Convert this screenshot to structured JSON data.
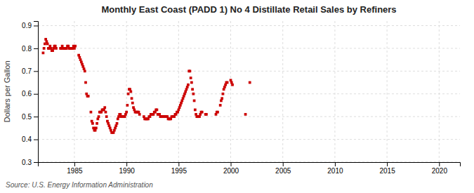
{
  "chart_data": {
    "type": "scatter",
    "title": "Monthly East Coast (PADD 1) No 4 Distillate Retail Sales by Refiners",
    "ylabel": "Dollars per Gallon",
    "annotations": [
      "Source: U.S. Energy Information Administration"
    ],
    "color": "#CC0000",
    "marker": "square",
    "grid": true,
    "xlim": [
      1981.5,
      2022
    ],
    "ylim": [
      0.3,
      0.92
    ],
    "xticks": [
      1985,
      1990,
      1995,
      2000,
      2005,
      2010,
      2015,
      2020
    ],
    "yticks": [
      0.3,
      0.4,
      0.5,
      0.6,
      0.7,
      0.8,
      0.9
    ],
    "x": [
      1982.0,
      1982.083,
      1982.167,
      1982.25,
      1982.333,
      1982.417,
      1982.5,
      1982.583,
      1982.667,
      1982.75,
      1982.833,
      1982.917,
      1983.0,
      1983.083,
      1983.167,
      1983.25,
      1983.667,
      1983.75,
      1983.833,
      1983.917,
      1984.0,
      1984.083,
      1984.167,
      1984.25,
      1984.333,
      1984.417,
      1984.5,
      1984.583,
      1984.667,
      1984.75,
      1984.833,
      1984.917,
      1985.0,
      1985.083,
      1985.417,
      1985.5,
      1985.583,
      1985.667,
      1985.75,
      1985.833,
      1985.917,
      1986.0,
      1986.083,
      1986.167,
      1986.25,
      1986.333,
      1986.583,
      1986.667,
      1986.75,
      1986.833,
      1986.917,
      1987.0,
      1987.083,
      1987.167,
      1987.25,
      1987.333,
      1987.417,
      1987.5,
      1987.583,
      1987.667,
      1987.75,
      1987.833,
      1987.917,
      1988.0,
      1988.083,
      1988.167,
      1988.25,
      1988.333,
      1988.417,
      1988.5,
      1988.583,
      1988.667,
      1988.75,
      1988.833,
      1988.917,
      1989.0,
      1989.083,
      1989.167,
      1989.25,
      1989.333,
      1989.417,
      1989.5,
      1989.583,
      1989.667,
      1989.75,
      1989.833,
      1989.917,
      1990.0,
      1990.083,
      1990.167,
      1990.25,
      1990.333,
      1990.417,
      1990.5,
      1990.583,
      1990.667,
      1990.75,
      1990.833,
      1990.917,
      1991.0,
      1991.083,
      1991.167,
      1991.25,
      1991.667,
      1991.75,
      1991.833,
      1991.917,
      1992.0,
      1992.083,
      1992.167,
      1992.25,
      1992.333,
      1992.417,
      1992.5,
      1992.583,
      1992.667,
      1992.75,
      1992.833,
      1992.917,
      1993.0,
      1993.083,
      1993.167,
      1993.25,
      1993.333,
      1993.417,
      1993.5,
      1993.583,
      1993.667,
      1993.75,
      1993.833,
      1993.917,
      1994.0,
      1994.083,
      1994.167,
      1994.25,
      1994.333,
      1994.417,
      1994.5,
      1994.583,
      1994.667,
      1994.75,
      1994.833,
      1994.917,
      1995.0,
      1995.083,
      1995.167,
      1995.25,
      1995.333,
      1995.417,
      1995.5,
      1995.583,
      1995.667,
      1995.75,
      1995.833,
      1995.917,
      1996.0,
      1996.083,
      1996.167,
      1996.25,
      1996.333,
      1996.417,
      1996.5,
      1996.583,
      1996.667,
      1996.75,
      1996.833,
      1996.917,
      1997.0,
      1997.083,
      1997.167,
      1997.25,
      1997.583,
      1997.667,
      1998.583,
      1998.667,
      1998.75,
      1999.0,
      1999.083,
      1999.167,
      1999.25,
      1999.333,
      1999.417,
      1999.5,
      1999.583,
      1999.667,
      2000.0,
      2000.083,
      2000.167,
      2001.417,
      2001.833
    ],
    "values": [
      0.78,
      0.8,
      0.82,
      0.84,
      0.83,
      0.82,
      0.8,
      0.8,
      0.81,
      0.8,
      0.79,
      0.79,
      0.8,
      0.81,
      0.81,
      0.8,
      0.8,
      0.8,
      0.81,
      0.8,
      0.8,
      0.8,
      0.8,
      0.8,
      0.81,
      0.81,
      0.8,
      0.8,
      0.8,
      0.8,
      0.8,
      0.81,
      0.8,
      0.81,
      0.77,
      0.76,
      0.75,
      0.74,
      0.73,
      0.72,
      0.71,
      0.7,
      0.65,
      0.6,
      0.59,
      0.59,
      0.52,
      0.48,
      0.47,
      0.45,
      0.44,
      0.44,
      0.45,
      0.47,
      0.49,
      0.5,
      0.52,
      0.52,
      0.52,
      0.53,
      0.53,
      0.53,
      0.54,
      0.52,
      0.5,
      0.48,
      0.47,
      0.46,
      0.45,
      0.44,
      0.43,
      0.43,
      0.43,
      0.44,
      0.45,
      0.46,
      0.47,
      0.49,
      0.5,
      0.51,
      0.51,
      0.5,
      0.5,
      0.5,
      0.5,
      0.5,
      0.51,
      0.52,
      0.55,
      0.6,
      0.62,
      0.62,
      0.61,
      0.58,
      0.56,
      0.54,
      0.53,
      0.52,
      0.52,
      0.52,
      0.52,
      0.52,
      0.51,
      0.5,
      0.49,
      0.49,
      0.49,
      0.49,
      0.49,
      0.5,
      0.5,
      0.51,
      0.51,
      0.51,
      0.51,
      0.52,
      0.52,
      0.53,
      0.53,
      0.51,
      0.51,
      0.51,
      0.5,
      0.5,
      0.5,
      0.5,
      0.5,
      0.5,
      0.5,
      0.5,
      0.5,
      0.49,
      0.49,
      0.49,
      0.49,
      0.5,
      0.5,
      0.5,
      0.5,
      0.51,
      0.51,
      0.52,
      0.52,
      0.53,
      0.54,
      0.55,
      0.56,
      0.57,
      0.58,
      0.59,
      0.6,
      0.61,
      0.62,
      0.63,
      0.64,
      0.7,
      0.7,
      0.67,
      0.65,
      0.62,
      0.6,
      0.57,
      0.53,
      0.51,
      0.5,
      0.5,
      0.5,
      0.5,
      0.51,
      0.52,
      0.52,
      0.51,
      0.51,
      0.51,
      0.52,
      0.52,
      0.55,
      0.57,
      0.58,
      0.6,
      0.62,
      0.63,
      0.64,
      0.65,
      0.65,
      0.66,
      0.65,
      0.64,
      0.51,
      0.65
    ]
  }
}
